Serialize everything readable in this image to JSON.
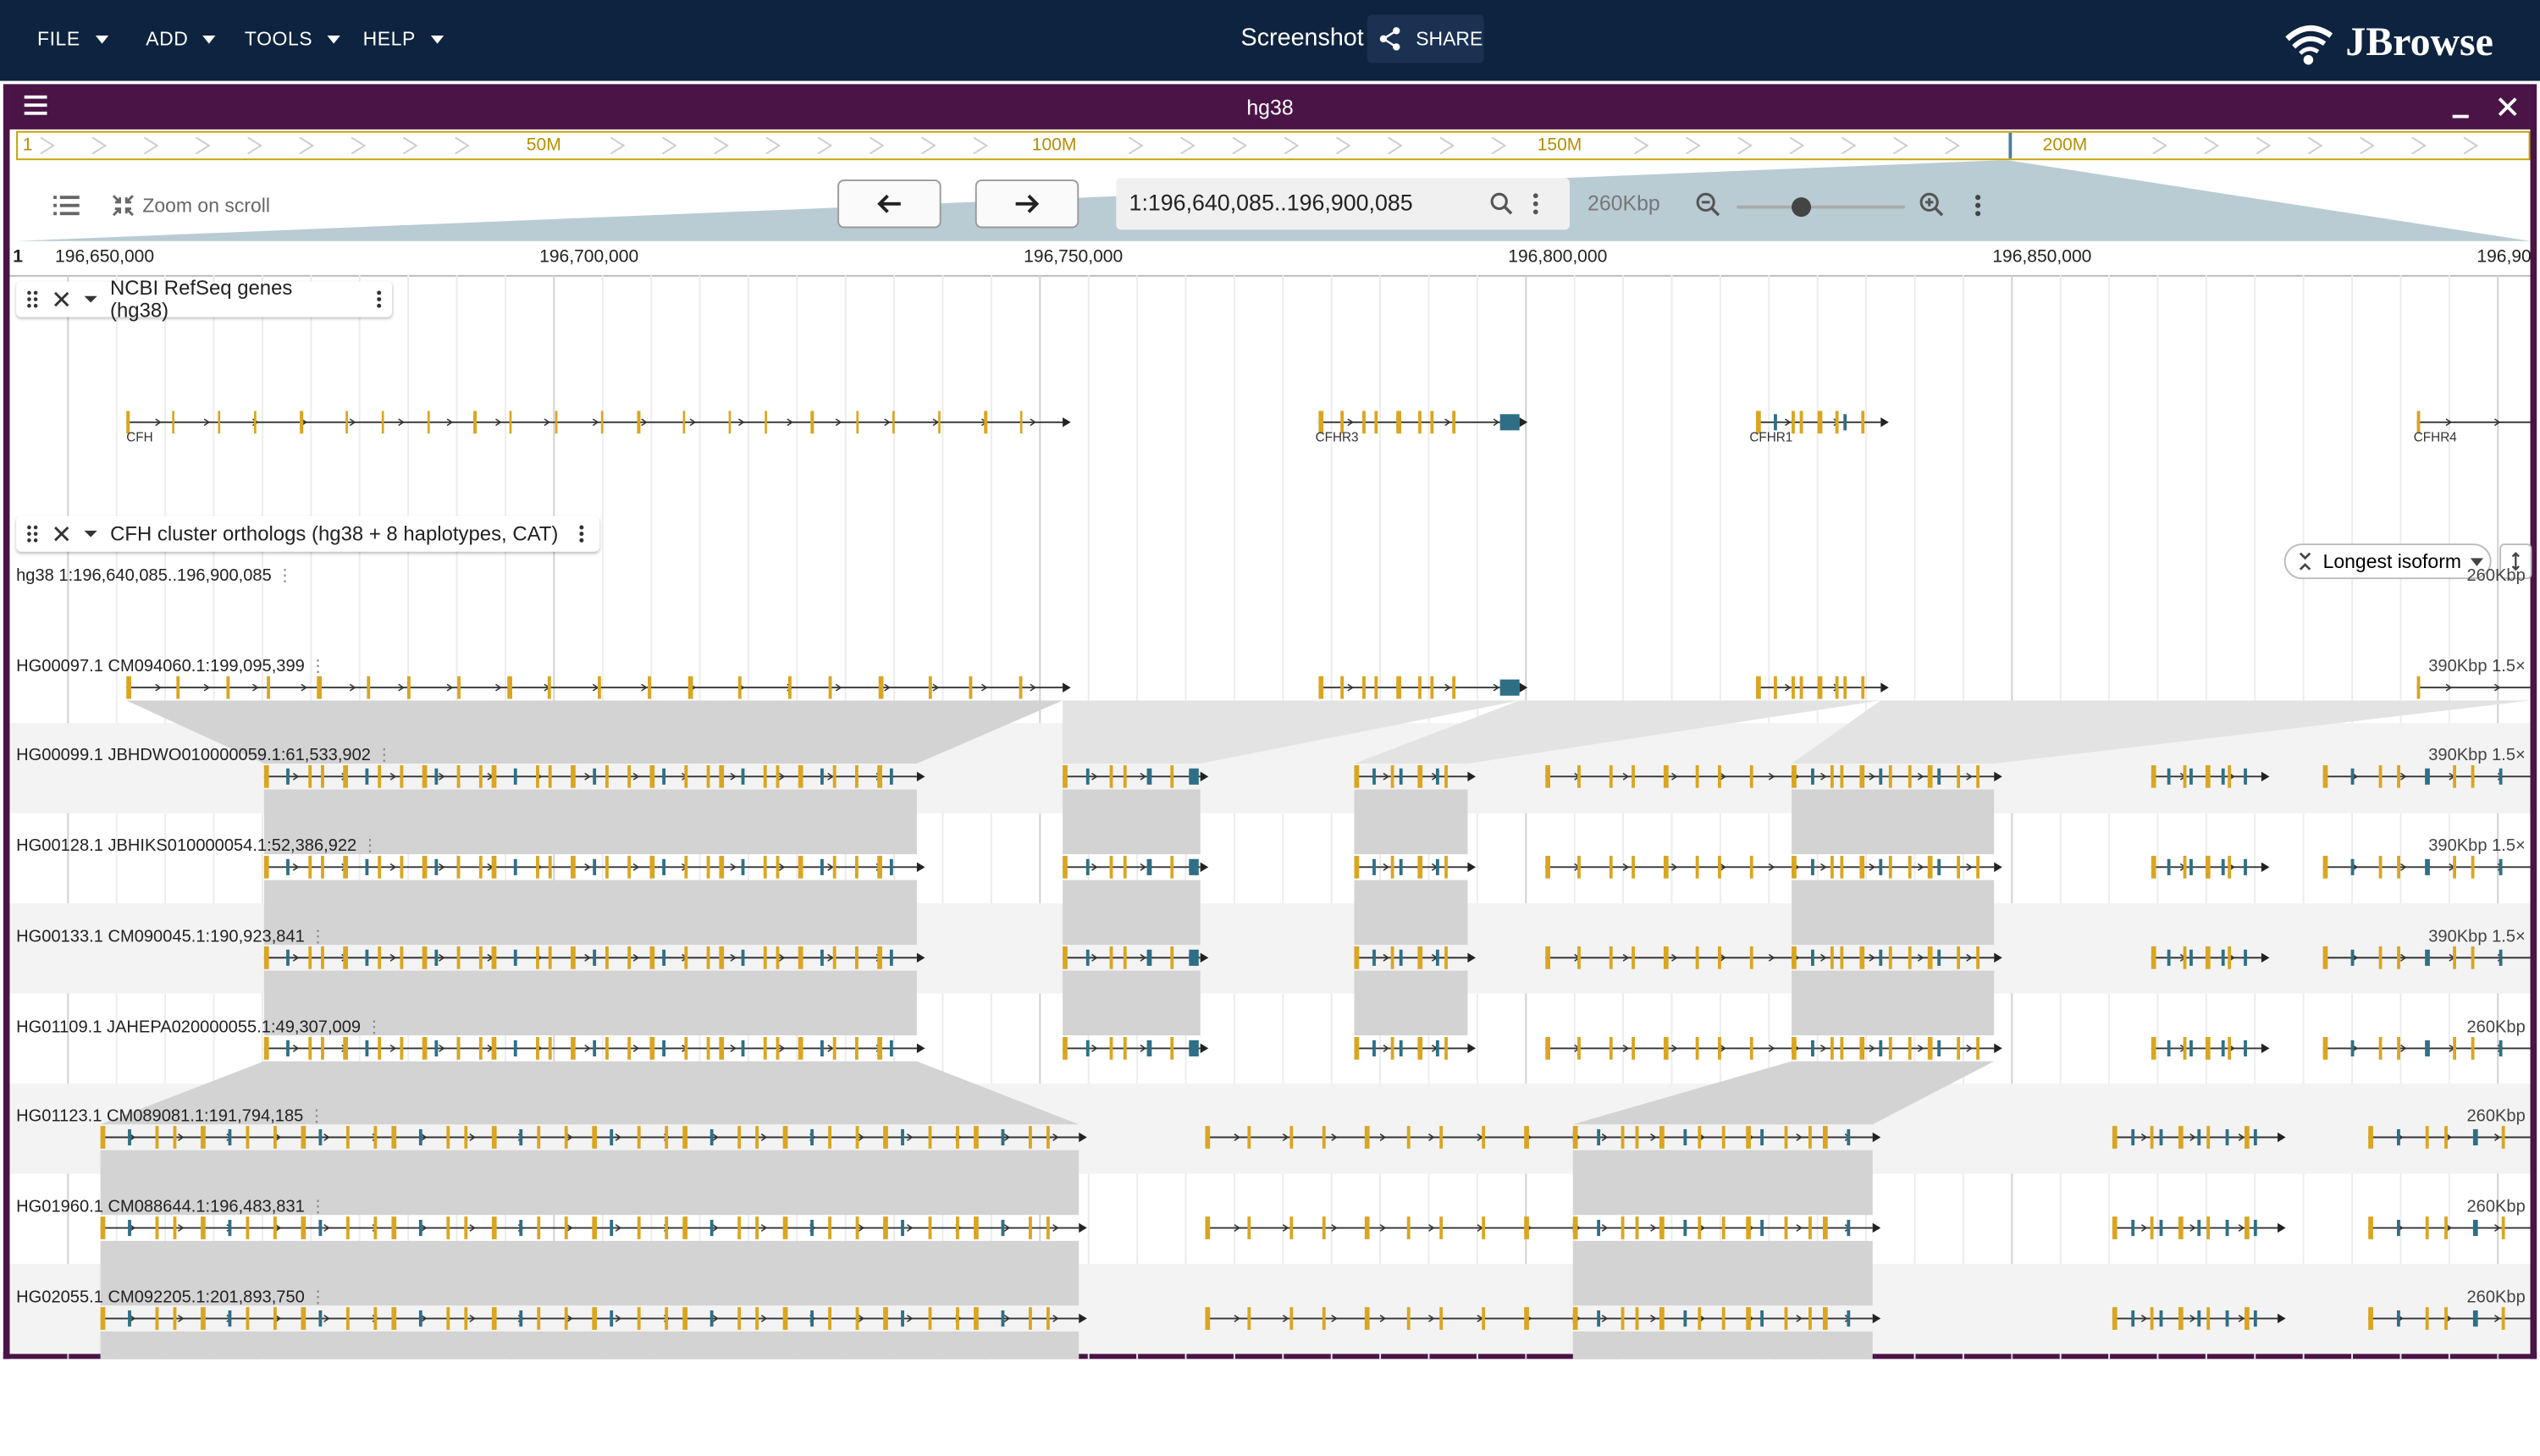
{
  "appbar": {
    "menus": [
      "FILE",
      "ADD",
      "TOOLS",
      "HELP"
    ],
    "session_title": "Screenshot",
    "share_label": "SHARE",
    "logo_text": "JBrowse"
  },
  "view": {
    "assembly_title": "hg38",
    "overview_labels": [
      "1",
      "50M",
      "100M",
      "150M",
      "200M"
    ],
    "zoom_on_scroll_label": "Zoom on scroll",
    "location": "1:196,640,085..196,900,085",
    "span_label": "260Kbp",
    "zoom_slider_level": 0.38,
    "ruler_ticks": [
      "1",
      "196,650,000",
      "196,700,000",
      "196,750,000",
      "196,800,000",
      "196,850,000",
      "196,90"
    ]
  },
  "tracks": {
    "refseq": {
      "name": "NCBI RefSeq genes (hg38)",
      "genes": [
        "CFH",
        "CFHR3",
        "CFHR1",
        "CFHR4"
      ]
    },
    "orthologs": {
      "name": "CFH cluster orthologs (hg38 + 8 haplotypes, CAT)",
      "isoform_option": "Longest isoform",
      "rows": [
        {
          "label": "hg38 1:196,640,085..196,900,085",
          "scale": "260Kbp"
        },
        {
          "label": "HG00097.1 CM094060.1:199,095,399",
          "scale": "390Kbp 1.5×"
        },
        {
          "label": "HG00099.1 JBHDWO010000059.1:61,533,902",
          "scale": "390Kbp 1.5×"
        },
        {
          "label": "HG00128.1 JBHIKS010000054.1:52,386,922",
          "scale": "390Kbp 1.5×"
        },
        {
          "label": "HG00133.1 CM090045.1:190,923,841",
          "scale": "390Kbp 1.5×"
        },
        {
          "label": "HG01109.1 JAHEPA020000055.1:49,307,009",
          "scale": "260Kbp"
        },
        {
          "label": "HG01123.1 CM089081.1:191,794,185",
          "scale": "260Kbp"
        },
        {
          "label": "HG01960.1 CM088644.1:196,483,831",
          "scale": "260Kbp"
        },
        {
          "label": "HG02055.1 CM092205.1:201,893,750",
          "scale": "260Kbp"
        }
      ]
    }
  },
  "colors": {
    "header": "#0d233f",
    "view_border": "#4a1446",
    "exon_yellow": "#daa520",
    "exon_teal": "#2e6f86",
    "synteny_grey": "#d3d3d3"
  },
  "icons": [
    "share-icon",
    "jbrowse-logo-icon",
    "hamburger-icon",
    "minimize-icon",
    "close-icon",
    "track-selector-icon",
    "zoom-on-scroll-icon",
    "arrow-left-icon",
    "arrow-right-icon",
    "search-icon",
    "kebab-icon",
    "zoom-out-icon",
    "zoom-in-icon",
    "drag-handle-icon",
    "chevron-down-icon",
    "collapse-icon",
    "vertical-resize-icon"
  ]
}
